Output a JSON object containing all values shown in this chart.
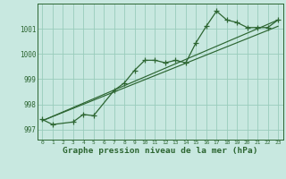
{
  "bg_color": "#c8e8e0",
  "grid_color": "#99ccbb",
  "line_color": "#2d6632",
  "xlabel": "Graphe pression niveau de la mer (hPa)",
  "xlabel_fontsize": 6.8,
  "ytick_vals": [
    997,
    998,
    999,
    1000,
    1001
  ],
  "xtick_vals": [
    0,
    1,
    2,
    3,
    4,
    5,
    6,
    7,
    8,
    9,
    10,
    11,
    12,
    13,
    14,
    15,
    16,
    17,
    18,
    19,
    20,
    21,
    22,
    23
  ],
  "xlim": [
    -0.5,
    23.5
  ],
  "ylim": [
    996.6,
    1002.0
  ],
  "series_main_x": [
    0,
    1,
    3,
    4,
    5,
    7,
    8,
    9,
    10,
    11,
    12,
    13,
    14,
    15,
    16,
    17,
    18,
    19,
    20,
    21,
    22,
    23
  ],
  "series_main_y": [
    997.4,
    997.2,
    997.3,
    997.6,
    997.55,
    998.55,
    998.85,
    999.35,
    999.75,
    999.75,
    999.65,
    999.75,
    999.65,
    1000.45,
    1001.1,
    1001.7,
    1001.35,
    1001.25,
    1001.05,
    1001.05,
    1001.05,
    1001.35
  ],
  "ref_line1_x": [
    0,
    23
  ],
  "ref_line1_y": [
    997.35,
    1001.1
  ],
  "ref_line2_x": [
    0,
    23
  ],
  "ref_line2_y": [
    997.35,
    1001.35
  ]
}
